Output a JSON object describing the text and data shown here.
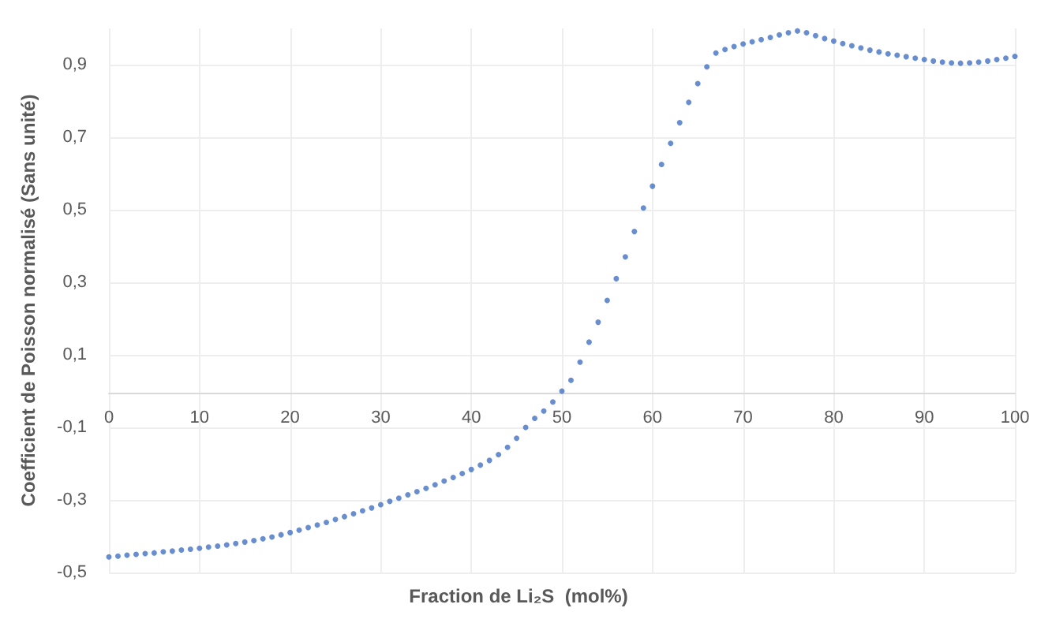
{
  "chart_data": {
    "type": "scatter",
    "xlabel": "Fraction de Li₂S  (mol%)",
    "ylabel": "Coefficient de Poisson normalisé (Sans unité)",
    "x": [
      0,
      1,
      2,
      3,
      4,
      5,
      6,
      7,
      8,
      9,
      10,
      11,
      12,
      13,
      14,
      15,
      16,
      17,
      18,
      19,
      20,
      21,
      22,
      23,
      24,
      25,
      26,
      27,
      28,
      29,
      30,
      31,
      32,
      33,
      34,
      35,
      36,
      37,
      38,
      39,
      40,
      41,
      42,
      43,
      44,
      45,
      46,
      47,
      48,
      49,
      50,
      51,
      52,
      53,
      54,
      55,
      56,
      57,
      58,
      59,
      60,
      61,
      62,
      63,
      64,
      65,
      66,
      67,
      68,
      69,
      70,
      71,
      72,
      73,
      74,
      75,
      76,
      77,
      78,
      79,
      80,
      81,
      82,
      83,
      84,
      85,
      86,
      87,
      88,
      89,
      90,
      91,
      92,
      93,
      94,
      95,
      96,
      97,
      98,
      99,
      100
    ],
    "series": [
      {
        "color": "#4472c4",
        "values": [
          -0.457,
          -0.455,
          -0.452,
          -0.45,
          -0.448,
          -0.446,
          -0.443,
          -0.441,
          -0.438,
          -0.436,
          -0.433,
          -0.43,
          -0.427,
          -0.424,
          -0.42,
          -0.416,
          -0.412,
          -0.407,
          -0.402,
          -0.396,
          -0.39,
          -0.383,
          -0.376,
          -0.369,
          -0.362,
          -0.354,
          -0.346,
          -0.338,
          -0.33,
          -0.322,
          -0.313,
          -0.304,
          -0.295,
          -0.286,
          -0.277,
          -0.268,
          -0.258,
          -0.248,
          -0.238,
          -0.227,
          -0.216,
          -0.204,
          -0.191,
          -0.175,
          -0.155,
          -0.13,
          -0.1,
          -0.075,
          -0.055,
          -0.03,
          0.0,
          0.03,
          0.08,
          0.135,
          0.19,
          0.25,
          0.31,
          0.37,
          0.44,
          0.505,
          0.565,
          0.625,
          0.683,
          0.74,
          0.796,
          0.848,
          0.894,
          0.932,
          0.942,
          0.95,
          0.957,
          0.963,
          0.969,
          0.975,
          0.982,
          0.988,
          0.993,
          0.988,
          0.98,
          0.972,
          0.965,
          0.958,
          0.952,
          0.946,
          0.94,
          0.935,
          0.93,
          0.926,
          0.922,
          0.918,
          0.914,
          0.91,
          0.907,
          0.905,
          0.904,
          0.905,
          0.907,
          0.91,
          0.914,
          0.918,
          0.923
        ]
      }
    ],
    "xlim": [
      0,
      100
    ],
    "xticks": [
      0,
      10,
      20,
      30,
      40,
      50,
      60,
      70,
      80,
      90,
      100
    ],
    "ylim": [
      -0.5,
      1.0
    ],
    "yticks": [
      {
        "value": -0.5,
        "label": "-0,5"
      },
      {
        "value": -0.3,
        "label": "-0,3"
      },
      {
        "value": -0.1,
        "label": "-0,1"
      },
      {
        "value": 0.1,
        "label": "0,1"
      },
      {
        "value": 0.3,
        "label": "0,3"
      },
      {
        "value": 0.5,
        "label": "0,5"
      },
      {
        "value": 0.7,
        "label": "0,7"
      },
      {
        "value": 0.9,
        "label": "0,9"
      }
    ],
    "grid": true,
    "marker": "circle"
  }
}
